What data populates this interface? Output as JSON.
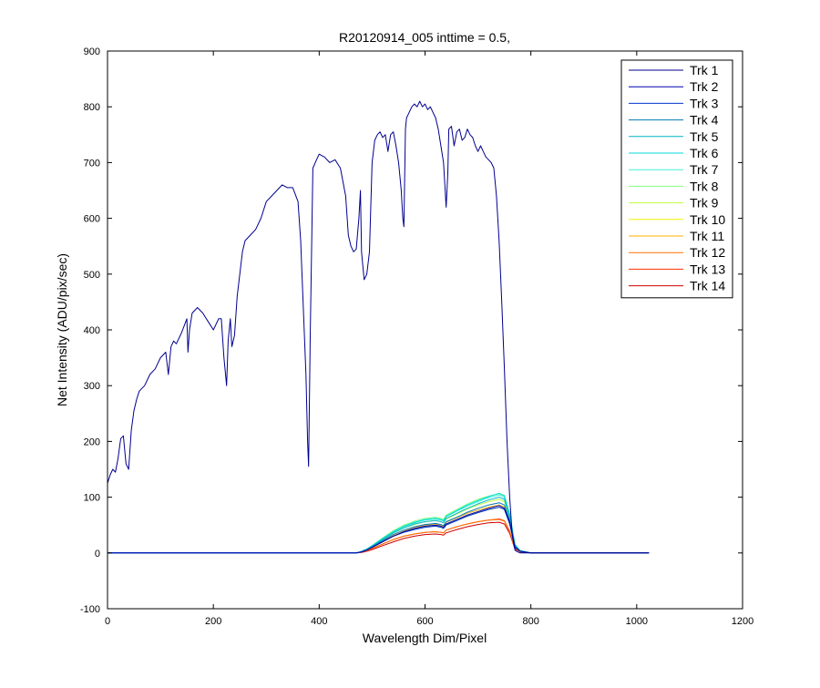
{
  "chart_data": {
    "type": "line",
    "title": "R20120914_005 inttime = 0.5,",
    "xlabel": "Wavelength Dim/Pixel",
    "ylabel": "Net Intensity (ADU/pix/sec)",
    "xlim": [
      0,
      1200
    ],
    "ylim": [
      -100,
      900
    ],
    "xticks": [
      0,
      200,
      400,
      600,
      800,
      1000,
      1200
    ],
    "yticks": [
      -100,
      0,
      100,
      200,
      300,
      400,
      500,
      600,
      700,
      800,
      900
    ],
    "grid": false,
    "legend_position": "top-right",
    "series": [
      {
        "name": "Trk 1",
        "color": "#00008f",
        "x": [
          0,
          5,
          10,
          15,
          20,
          25,
          30,
          35,
          40,
          45,
          50,
          55,
          60,
          70,
          80,
          90,
          100,
          110,
          115,
          120,
          125,
          130,
          140,
          150,
          152,
          155,
          160,
          170,
          180,
          190,
          200,
          210,
          215,
          220,
          225,
          228,
          230,
          232,
          235,
          240,
          245,
          250,
          255,
          260,
          270,
          280,
          290,
          300,
          310,
          320,
          330,
          340,
          350,
          360,
          365,
          370,
          375,
          378,
          380,
          383,
          388,
          395,
          400,
          410,
          420,
          430,
          440,
          450,
          455,
          460,
          465,
          470,
          475,
          478,
          480,
          483,
          485,
          490,
          495,
          500,
          505,
          510,
          515,
          520,
          525,
          530,
          535,
          540,
          545,
          550,
          555,
          558,
          560,
          563,
          565,
          570,
          575,
          580,
          585,
          590,
          595,
          600,
          605,
          610,
          615,
          620,
          625,
          630,
          635,
          638,
          640,
          643,
          645,
          650,
          655,
          660,
          665,
          670,
          675,
          680,
          685,
          690,
          695,
          700,
          705,
          710,
          715,
          720,
          725,
          730,
          735,
          740,
          745,
          750,
          755,
          760,
          765,
          770,
          775,
          780,
          790,
          800,
          850,
          900,
          950,
          1000,
          1023
        ],
        "y": [
          125,
          140,
          150,
          145,
          170,
          205,
          210,
          160,
          150,
          220,
          255,
          275,
          290,
          300,
          320,
          330,
          350,
          360,
          320,
          370,
          380,
          375,
          395,
          420,
          360,
          400,
          430,
          440,
          430,
          415,
          400,
          420,
          420,
          350,
          300,
          380,
          400,
          420,
          370,
          390,
          460,
          500,
          540,
          560,
          570,
          580,
          600,
          630,
          640,
          650,
          660,
          655,
          655,
          630,
          560,
          440,
          320,
          200,
          155,
          390,
          690,
          705,
          715,
          710,
          700,
          705,
          690,
          640,
          570,
          550,
          540,
          545,
          600,
          650,
          540,
          510,
          490,
          500,
          540,
          700,
          740,
          750,
          755,
          745,
          750,
          720,
          750,
          755,
          730,
          700,
          650,
          600,
          585,
          760,
          780,
          790,
          800,
          805,
          800,
          810,
          800,
          805,
          795,
          800,
          790,
          780,
          760,
          730,
          700,
          650,
          620,
          680,
          760,
          765,
          730,
          755,
          760,
          740,
          745,
          760,
          750,
          745,
          730,
          720,
          730,
          720,
          710,
          705,
          700,
          690,
          640,
          560,
          450,
          330,
          200,
          100,
          30,
          5,
          2,
          0,
          0,
          0,
          0,
          0,
          0,
          0,
          0
        ]
      },
      {
        "name": "Trk 2",
        "color": "#0000b0",
        "x": [
          0,
          100,
          200,
          300,
          400,
          470,
          480,
          490,
          500,
          520,
          540,
          560,
          580,
          600,
          620,
          630,
          635,
          640,
          660,
          680,
          700,
          720,
          740,
          750,
          760,
          770,
          780,
          800,
          900,
          1023
        ],
        "y": [
          0,
          0,
          0,
          0,
          0,
          0,
          2,
          5,
          10,
          20,
          30,
          38,
          44,
          48,
          50,
          48,
          46,
          52,
          60,
          68,
          74,
          80,
          85,
          80,
          55,
          10,
          3,
          0,
          0,
          0
        ]
      },
      {
        "name": "Trk 3",
        "color": "#0036d1",
        "x": [
          0,
          100,
          200,
          300,
          400,
          470,
          480,
          490,
          500,
          520,
          540,
          560,
          580,
          600,
          620,
          630,
          635,
          640,
          660,
          680,
          700,
          720,
          740,
          750,
          760,
          770,
          780,
          800,
          900,
          1023
        ],
        "y": [
          0,
          0,
          0,
          0,
          0,
          0,
          2,
          5,
          10,
          20,
          30,
          37,
          42,
          46,
          48,
          46,
          44,
          50,
          58,
          66,
          72,
          78,
          82,
          78,
          52,
          10,
          3,
          0,
          0,
          0
        ]
      },
      {
        "name": "Trk 4",
        "color": "#0078b3",
        "x": [
          0,
          100,
          200,
          300,
          400,
          470,
          480,
          490,
          500,
          520,
          540,
          560,
          580,
          600,
          620,
          630,
          635,
          640,
          660,
          680,
          700,
          720,
          740,
          750,
          760,
          770,
          780,
          800,
          900,
          1023
        ],
        "y": [
          0,
          0,
          0,
          0,
          0,
          0,
          2,
          6,
          11,
          22,
          33,
          41,
          47,
          51,
          53,
          51,
          49,
          56,
          64,
          73,
          80,
          86,
          90,
          86,
          58,
          12,
          3,
          0,
          0,
          0
        ]
      },
      {
        "name": "Trk 5",
        "color": "#00b3c8",
        "x": [
          0,
          100,
          200,
          300,
          400,
          470,
          480,
          490,
          500,
          520,
          540,
          560,
          580,
          600,
          620,
          630,
          635,
          640,
          660,
          680,
          700,
          720,
          740,
          750,
          760,
          770,
          780,
          800,
          900,
          1023
        ],
        "y": [
          0,
          0,
          0,
          0,
          0,
          0,
          2,
          6,
          12,
          24,
          36,
          45,
          52,
          56,
          58,
          56,
          54,
          62,
          71,
          80,
          88,
          95,
          100,
          96,
          64,
          14,
          4,
          0,
          0,
          0
        ]
      },
      {
        "name": "Trk 6",
        "color": "#00d9d9",
        "x": [
          0,
          100,
          200,
          300,
          400,
          470,
          480,
          490,
          500,
          520,
          540,
          560,
          580,
          600,
          620,
          630,
          635,
          640,
          660,
          680,
          700,
          720,
          740,
          750,
          760,
          770,
          780,
          800,
          900,
          1023
        ],
        "y": [
          0,
          0,
          0,
          0,
          0,
          0,
          3,
          7,
          13,
          26,
          38,
          48,
          55,
          60,
          62,
          60,
          58,
          66,
          76,
          86,
          94,
          101,
          107,
          103,
          70,
          15,
          4,
          0,
          0,
          0
        ]
      },
      {
        "name": "Trk 7",
        "color": "#40f0d8",
        "x": [
          0,
          100,
          200,
          300,
          400,
          470,
          480,
          490,
          500,
          520,
          540,
          560,
          580,
          600,
          620,
          630,
          635,
          640,
          660,
          680,
          700,
          720,
          740,
          750,
          760,
          770,
          780,
          800,
          900,
          1023
        ],
        "y": [
          0,
          0,
          0,
          0,
          0,
          0,
          3,
          7,
          13,
          26,
          38,
          47,
          54,
          59,
          61,
          59,
          57,
          65,
          75,
          84,
          92,
          99,
          104,
          100,
          68,
          15,
          4,
          0,
          0,
          0
        ]
      },
      {
        "name": "Trk 8",
        "color": "#80ff80",
        "x": [
          0,
          100,
          200,
          300,
          400,
          470,
          480,
          490,
          500,
          520,
          540,
          560,
          580,
          600,
          620,
          630,
          635,
          640,
          660,
          680,
          700,
          720,
          740,
          750,
          760,
          770,
          780,
          800,
          900,
          1023
        ],
        "y": [
          0,
          0,
          0,
          0,
          0,
          0,
          3,
          7,
          13,
          27,
          40,
          50,
          57,
          62,
          64,
          62,
          60,
          68,
          78,
          88,
          96,
          102,
          106,
          102,
          68,
          15,
          4,
          0,
          0,
          0
        ]
      },
      {
        "name": "Trk 9",
        "color": "#c0ff40",
        "x": [
          0,
          100,
          200,
          300,
          400,
          470,
          480,
          490,
          500,
          520,
          540,
          560,
          580,
          600,
          620,
          630,
          635,
          640,
          660,
          680,
          700,
          720,
          740,
          750,
          760,
          770,
          780,
          800,
          900,
          1023
        ],
        "y": [
          0,
          0,
          0,
          0,
          0,
          0,
          2,
          6,
          12,
          24,
          36,
          45,
          51,
          56,
          58,
          56,
          54,
          61,
          70,
          79,
          86,
          92,
          96,
          92,
          62,
          13,
          3,
          0,
          0,
          0
        ]
      },
      {
        "name": "Trk 10",
        "color": "#f0f000",
        "x": [
          0,
          100,
          200,
          300,
          400,
          470,
          480,
          490,
          500,
          520,
          540,
          560,
          580,
          600,
          620,
          630,
          635,
          640,
          660,
          680,
          700,
          720,
          740,
          750,
          760,
          770,
          780,
          800,
          900,
          1023
        ],
        "y": [
          0,
          0,
          0,
          0,
          0,
          0,
          2,
          5,
          10,
          20,
          30,
          38,
          43,
          47,
          49,
          47,
          45,
          51,
          59,
          67,
          73,
          78,
          82,
          78,
          53,
          11,
          3,
          0,
          0,
          0
        ]
      },
      {
        "name": "Trk 11",
        "color": "#ffb000",
        "x": [
          0,
          100,
          200,
          300,
          400,
          470,
          480,
          490,
          500,
          520,
          540,
          560,
          580,
          600,
          620,
          630,
          635,
          640,
          660,
          680,
          700,
          720,
          740,
          750,
          760,
          770,
          780,
          800,
          900,
          1023
        ],
        "y": [
          0,
          0,
          0,
          0,
          0,
          0,
          2,
          5,
          10,
          21,
          31,
          39,
          45,
          50,
          52,
          50,
          48,
          55,
          63,
          71,
          77,
          82,
          86,
          82,
          55,
          12,
          3,
          0,
          0,
          0
        ]
      },
      {
        "name": "Trk 12",
        "color": "#ff7000",
        "x": [
          0,
          100,
          200,
          300,
          400,
          470,
          480,
          490,
          500,
          520,
          540,
          560,
          580,
          600,
          620,
          630,
          635,
          640,
          660,
          680,
          700,
          720,
          740,
          750,
          760,
          770,
          780,
          800,
          900,
          1023
        ],
        "y": [
          0,
          0,
          0,
          0,
          0,
          0,
          2,
          4,
          8,
          16,
          24,
          30,
          34,
          37,
          38,
          37,
          36,
          41,
          47,
          52,
          56,
          59,
          60,
          57,
          38,
          8,
          2,
          0,
          0,
          0
        ]
      },
      {
        "name": "Trk 13",
        "color": "#ff3000",
        "x": [
          0,
          100,
          200,
          300,
          400,
          470,
          480,
          490,
          500,
          520,
          540,
          560,
          580,
          600,
          620,
          630,
          635,
          640,
          660,
          680,
          700,
          720,
          740,
          750,
          760,
          770,
          780,
          800,
          900,
          1023
        ],
        "y": [
          0,
          0,
          0,
          0,
          0,
          0,
          2,
          4,
          8,
          16,
          24,
          30,
          34,
          37,
          38,
          37,
          36,
          41,
          47,
          52,
          56,
          59,
          61,
          58,
          39,
          8,
          2,
          0,
          0,
          0
        ]
      },
      {
        "name": "Trk 14",
        "color": "#d00000",
        "x": [
          0,
          100,
          200,
          300,
          400,
          470,
          480,
          490,
          500,
          520,
          540,
          560,
          580,
          600,
          620,
          630,
          635,
          640,
          660,
          680,
          700,
          720,
          740,
          750,
          760,
          770,
          780,
          800,
          900,
          1023
        ],
        "y": [
          0,
          0,
          0,
          0,
          0,
          0,
          1,
          3,
          6,
          13,
          20,
          26,
          30,
          33,
          34,
          33,
          32,
          36,
          42,
          47,
          51,
          54,
          55,
          52,
          35,
          7,
          2,
          0,
          0,
          0
        ]
      }
    ]
  }
}
